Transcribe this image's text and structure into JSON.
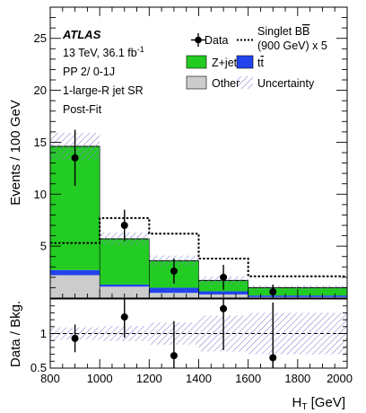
{
  "colors": {
    "zjets": "#22cc22",
    "ttbar": "#2244ee",
    "other": "#cccccc",
    "uncertainty": "#8080d0",
    "data": "#000000",
    "signal": "#000000"
  },
  "chart_data": [
    {
      "type": "bar",
      "subtype": "stacked-histogram",
      "bin_edges": [
        800,
        1000,
        1200,
        1400,
        1600,
        2000
      ],
      "series": [
        {
          "name": "Other",
          "values": [
            2.2,
            1.1,
            0.5,
            0.35,
            0.1
          ]
        },
        {
          "name": "t̄t",
          "values": [
            0.5,
            0.2,
            0.5,
            0.3,
            0.15
          ]
        },
        {
          "name": "Z+jets",
          "values": [
            11.9,
            4.4,
            2.6,
            1.05,
            0.75
          ]
        }
      ],
      "uncertainty": {
        "name": "Uncertainty",
        "half_width": [
          1.3,
          0.6,
          0.5,
          0.4,
          0.2
        ]
      },
      "signal": {
        "name": "Singlet B̅B (900 GeV) x 5",
        "values": [
          5.3,
          7.7,
          6.2,
          3.8,
          2.1
        ]
      },
      "data": {
        "name": "Data",
        "x": [
          900,
          1100,
          1300,
          1500,
          1700
        ],
        "y": [
          13.5,
          7.0,
          2.6,
          2.0,
          0.6
        ],
        "err": [
          2.7,
          1.5,
          1.2,
          1.2,
          0.7
        ]
      },
      "xlim": [
        800,
        2000
      ],
      "ylim": [
        0,
        28
      ],
      "y_ticks": [
        5,
        10,
        15,
        20,
        25
      ],
      "y_tick_labels": [
        "5",
        "10",
        "15",
        "20",
        "25"
      ],
      "ylabel": "Events / 100 GeV",
      "annotations": {
        "experiment": "ATLAS",
        "line1": "13 TeV, 36.1 fb",
        "line1_sup": "-1",
        "line2": "PP 2/ 0-1J",
        "line3": "1-large-R jet SR",
        "line4": "Post-Fit"
      },
      "legend": {
        "placement": "top-right",
        "data": "Data",
        "signal_line1": "Singlet B",
        "signal_bbar": "B",
        "signal_line2": "(900 GeV) x 5",
        "zjets": "Z+jets",
        "ttbar": "t",
        "ttbar_bar": "t",
        "other": "Other",
        "uncertainty": "Uncertainty"
      }
    },
    {
      "type": "scatter",
      "subtype": "ratio",
      "x": [
        900,
        1100,
        1300,
        1500,
        1700
      ],
      "y": [
        0.93,
        1.24,
        0.68,
        1.36,
        0.65
      ],
      "err_up": [
        0.2,
        0.3,
        0.5,
        0.6,
        0.8
      ],
      "err_down": [
        0.2,
        0.3,
        0.5,
        0.6,
        0.8
      ],
      "band_half_width": [
        0.09,
        0.11,
        0.16,
        0.26,
        0.3
      ],
      "xlim": [
        800,
        2000
      ],
      "ylim": [
        0.5,
        1.5
      ],
      "x_ticks": [
        800,
        1000,
        1200,
        1400,
        1600,
        1800,
        2000
      ],
      "x_tick_labels": [
        "800",
        "1000",
        "1200",
        "1400",
        "1600",
        "1800",
        "2000"
      ],
      "y_ticks": [
        0.5,
        1
      ],
      "y_tick_labels": [
        "0.5",
        "1"
      ],
      "ylabel": "Data / Bkg.",
      "xlabel_main": "H",
      "xlabel_sub": "T",
      "xlabel_unit": " [GeV]"
    }
  ]
}
